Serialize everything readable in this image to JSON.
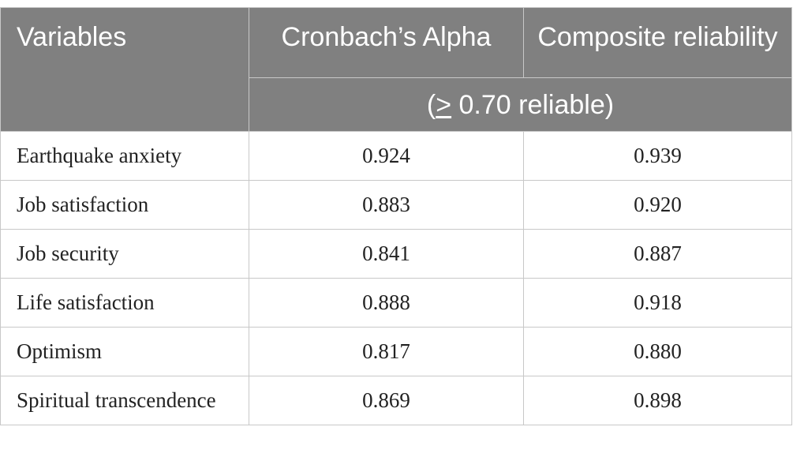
{
  "headers": {
    "variables": "Variables",
    "alpha": "Cronbach’s Alpha",
    "composite": "Composite reliability",
    "threshold_symbol": ">",
    "threshold_rest": " 0.70 reliable)",
    "threshold_open": "("
  },
  "rows": [
    {
      "variable": "Earthquake anxiety",
      "alpha": "0.924",
      "composite": "0.939"
    },
    {
      "variable": "Job satisfaction",
      "alpha": "0.883",
      "composite": "0.920"
    },
    {
      "variable": "Job security",
      "alpha": "0.841",
      "composite": "0.887"
    },
    {
      "variable": "Life satisfaction",
      "alpha": "0.888",
      "composite": "0.918"
    },
    {
      "variable": "Optimism",
      "alpha": "0.817",
      "composite": "0.880"
    },
    {
      "variable": "Spiritual transcendence",
      "alpha": "0.869",
      "composite": "0.898"
    }
  ]
}
